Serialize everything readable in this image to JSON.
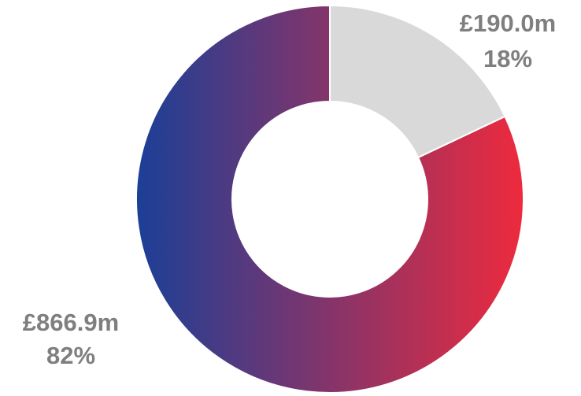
{
  "chart_data": {
    "type": "pie",
    "donut": true,
    "slices": [
      {
        "value": 190.0,
        "value_label": "£190.0m",
        "percent_label": "18%",
        "color": "#d9d9d9"
      },
      {
        "value": 866.9,
        "value_label": "£866.9m",
        "percent_label": "82%",
        "gradient": [
          "#1b3f97",
          "#ee2a3d"
        ]
      }
    ],
    "start_angle_deg": 0,
    "direction": "clockwise"
  },
  "colors": {
    "label_text": "#7f7f7f",
    "background": "#ffffff"
  }
}
